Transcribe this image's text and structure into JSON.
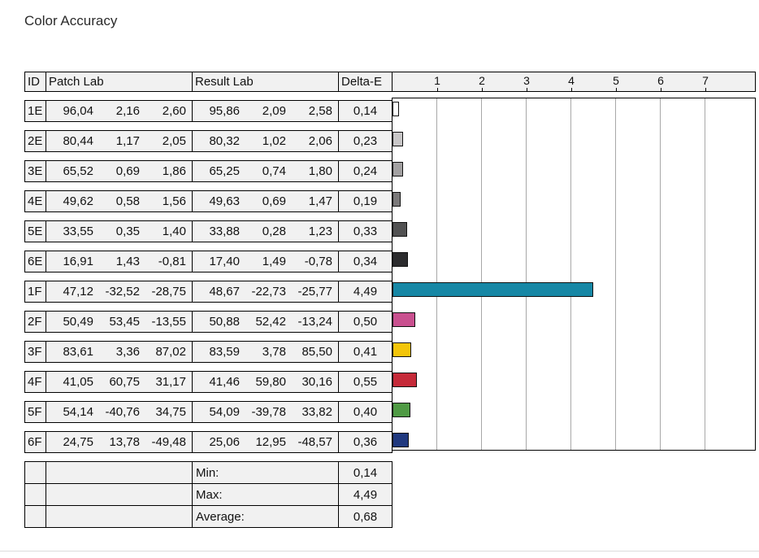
{
  "title": "Color Accuracy",
  "headers": {
    "id": "ID",
    "patch": "Patch Lab",
    "result": "Result Lab",
    "delta": "Delta-E"
  },
  "rows": [
    {
      "id": "1E",
      "patch": [
        "96,04",
        "2,16",
        "2,60"
      ],
      "result": [
        "95,86",
        "2,09",
        "2,58"
      ],
      "delta": "0,14"
    },
    {
      "id": "2E",
      "patch": [
        "80,44",
        "1,17",
        "2,05"
      ],
      "result": [
        "80,32",
        "1,02",
        "2,06"
      ],
      "delta": "0,23"
    },
    {
      "id": "3E",
      "patch": [
        "65,52",
        "0,69",
        "1,86"
      ],
      "result": [
        "65,25",
        "0,74",
        "1,80"
      ],
      "delta": "0,24"
    },
    {
      "id": "4E",
      "patch": [
        "49,62",
        "0,58",
        "1,56"
      ],
      "result": [
        "49,63",
        "0,69",
        "1,47"
      ],
      "delta": "0,19"
    },
    {
      "id": "5E",
      "patch": [
        "33,55",
        "0,35",
        "1,40"
      ],
      "result": [
        "33,88",
        "0,28",
        "1,23"
      ],
      "delta": "0,33"
    },
    {
      "id": "6E",
      "patch": [
        "16,91",
        "1,43",
        "-0,81"
      ],
      "result": [
        "17,40",
        "1,49",
        "-0,78"
      ],
      "delta": "0,34"
    },
    {
      "id": "1F",
      "patch": [
        "47,12",
        "-32,52",
        "-28,75"
      ],
      "result": [
        "48,67",
        "-22,73",
        "-25,77"
      ],
      "delta": "4,49"
    },
    {
      "id": "2F",
      "patch": [
        "50,49",
        "53,45",
        "-13,55"
      ],
      "result": [
        "50,88",
        "52,42",
        "-13,24"
      ],
      "delta": "0,50"
    },
    {
      "id": "3F",
      "patch": [
        "83,61",
        "3,36",
        "87,02"
      ],
      "result": [
        "83,59",
        "3,78",
        "85,50"
      ],
      "delta": "0,41"
    },
    {
      "id": "4F",
      "patch": [
        "41,05",
        "60,75",
        "31,17"
      ],
      "result": [
        "41,46",
        "59,80",
        "30,16"
      ],
      "delta": "0,55"
    },
    {
      "id": "5F",
      "patch": [
        "54,14",
        "-40,76",
        "34,75"
      ],
      "result": [
        "54,09",
        "-39,78",
        "33,82"
      ],
      "delta": "0,40"
    },
    {
      "id": "6F",
      "patch": [
        "24,75",
        "13,78",
        "-49,48"
      ],
      "result": [
        "25,06",
        "12,95",
        "-48,57"
      ],
      "delta": "0,36"
    }
  ],
  "summary": [
    {
      "label": "Min:",
      "value": "0,14"
    },
    {
      "label": "Max:",
      "value": "4,49"
    },
    {
      "label": "Average:",
      "value": "0,68"
    }
  ],
  "chart_data": {
    "type": "bar",
    "orientation": "horizontal",
    "title": "Color Accuracy",
    "xlabel": "Delta-E",
    "categories": [
      "1E",
      "2E",
      "3E",
      "4E",
      "5E",
      "6E",
      "1F",
      "2F",
      "3F",
      "4F",
      "5F",
      "6F"
    ],
    "values": [
      0.14,
      0.23,
      0.24,
      0.19,
      0.33,
      0.34,
      4.49,
      0.5,
      0.41,
      0.55,
      0.4,
      0.36
    ],
    "bar_colors": [
      "#ffffff",
      "#c9c7c8",
      "#a3a1a2",
      "#7b797a",
      "#525253",
      "#2c2c2e",
      "#1687a5",
      "#c9508f",
      "#f3c50a",
      "#c52a39",
      "#4f9a44",
      "#20397f"
    ],
    "axis_ticks": [
      1,
      2,
      3,
      4,
      5,
      6,
      7
    ],
    "xlim": [
      0,
      8.1
    ],
    "grid": true,
    "summary": {
      "min": 0.14,
      "max": 4.49,
      "average": 0.68
    }
  }
}
